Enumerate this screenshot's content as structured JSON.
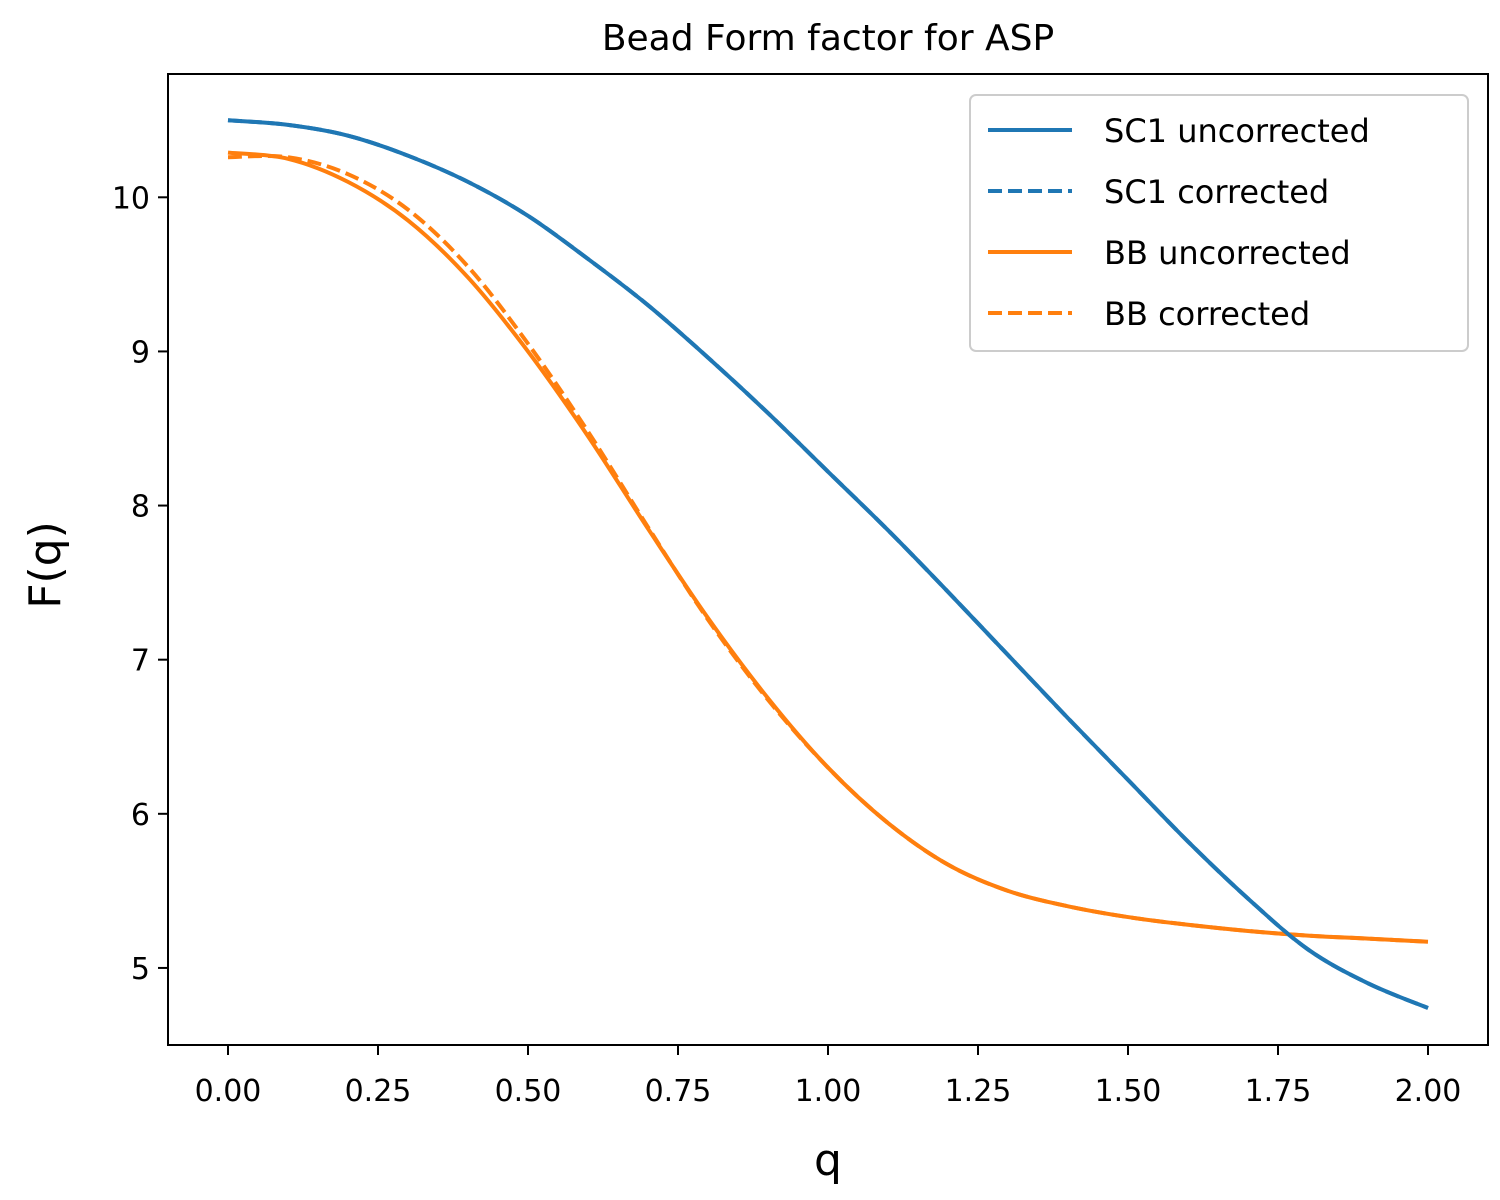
{
  "chart_data": {
    "type": "line",
    "title": "Bead Form factor for ASP",
    "xlabel": "q",
    "ylabel": "F(q)",
    "xlim": [
      -0.1,
      2.1
    ],
    "ylim": [
      4.5,
      10.8
    ],
    "xticks": [
      "0.00",
      "0.25",
      "0.50",
      "0.75",
      "1.00",
      "1.25",
      "1.50",
      "1.75",
      "2.00"
    ],
    "yticks": [
      "5",
      "6",
      "7",
      "8",
      "9",
      "10"
    ],
    "grid": false,
    "legend_position": "top-right",
    "x": [
      0,
      0.1,
      0.2,
      0.3,
      0.4,
      0.5,
      0.6,
      0.7,
      0.8,
      0.9,
      1.0,
      1.1,
      1.2,
      1.3,
      1.4,
      1.5,
      1.6,
      1.7,
      1.8,
      1.9,
      2.0
    ],
    "series": [
      {
        "name": "SC1 uncorrected",
        "color": "#1f77b4",
        "dash": "solid",
        "values": [
          10.5,
          10.47,
          10.4,
          10.27,
          10.1,
          9.88,
          9.6,
          9.3,
          8.96,
          8.6,
          8.22,
          7.84,
          7.44,
          7.03,
          6.62,
          6.22,
          5.82,
          5.45,
          5.12,
          4.9,
          4.74
        ]
      },
      {
        "name": "SC1 corrected",
        "color": "#1f77b4",
        "dash": "dashed",
        "values": [
          10.5,
          10.47,
          10.4,
          10.27,
          10.1,
          9.88,
          9.6,
          9.3,
          8.96,
          8.6,
          8.22,
          7.84,
          7.44,
          7.03,
          6.62,
          6.22,
          5.82,
          5.45,
          5.12,
          4.9,
          4.74
        ]
      },
      {
        "name": "BB uncorrected",
        "color": "#ff7f0e",
        "dash": "solid",
        "values": [
          10.29,
          10.25,
          10.1,
          9.85,
          9.48,
          9.0,
          8.45,
          7.85,
          7.27,
          6.75,
          6.3,
          5.94,
          5.67,
          5.5,
          5.4,
          5.33,
          5.28,
          5.24,
          5.21,
          5.19,
          5.17
        ]
      },
      {
        "name": "BB corrected",
        "color": "#ff7f0e",
        "dash": "dashed",
        "values": [
          10.26,
          10.26,
          10.15,
          9.92,
          9.55,
          9.05,
          8.48,
          7.86,
          7.26,
          6.74,
          6.3,
          5.94,
          5.67,
          5.5,
          5.4,
          5.33,
          5.28,
          5.24,
          5.21,
          5.19,
          5.17
        ]
      }
    ]
  }
}
